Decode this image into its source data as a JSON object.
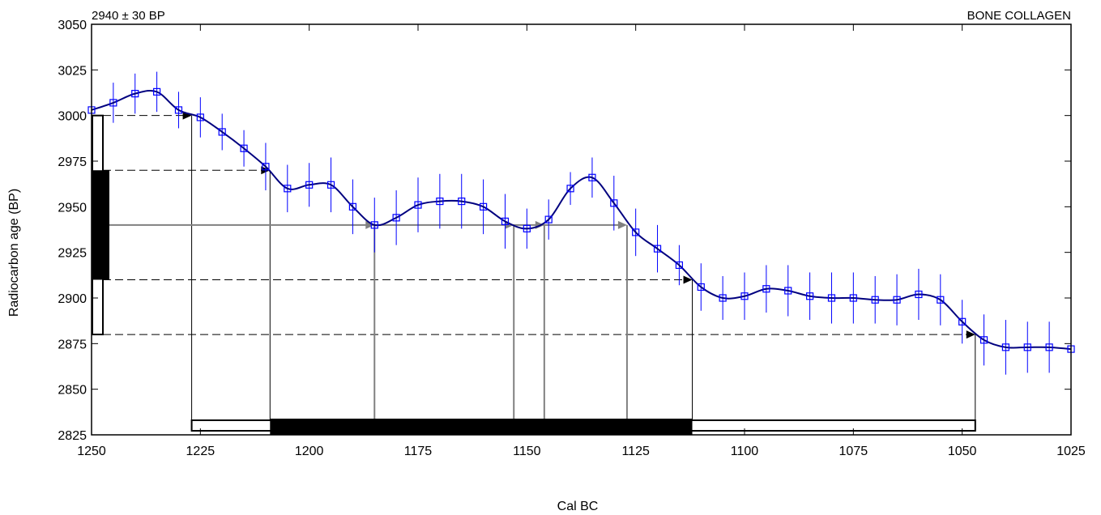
{
  "chart_data": {
    "type": "line",
    "title_left": "2940 ± 30 BP",
    "title_right": "BONE COLLAGEN",
    "xlabel": "Cal BC",
    "ylabel": "Radiocarbon age (BP)",
    "xlim": [
      1250,
      1025
    ],
    "ylim": [
      2825,
      3050
    ],
    "x_ticks": [
      1250,
      1225,
      1200,
      1175,
      1150,
      1125,
      1100,
      1075,
      1050,
      1025
    ],
    "y_ticks": [
      2825,
      2850,
      2875,
      2900,
      2925,
      2950,
      2975,
      3000,
      3025,
      3050
    ],
    "colors": {
      "curve": "#00007f",
      "points": "#0000ff",
      "intercept": "#808080",
      "axis": "#000000"
    },
    "calibration_curve": {
      "x": [
        1250,
        1245,
        1240,
        1235,
        1230,
        1225,
        1220,
        1215,
        1210,
        1205,
        1200,
        1195,
        1190,
        1185,
        1180,
        1175,
        1170,
        1165,
        1160,
        1155,
        1150,
        1145,
        1140,
        1135,
        1130,
        1125,
        1120,
        1115,
        1110,
        1105,
        1100,
        1095,
        1090,
        1085,
        1080,
        1075,
        1070,
        1065,
        1060,
        1055,
        1050,
        1045,
        1040,
        1035,
        1030,
        1025
      ],
      "y": [
        3003,
        3007,
        3012,
        3013,
        3003,
        2999,
        2991,
        2982,
        2972,
        2960,
        2962,
        2962,
        2950,
        2940,
        2944,
        2951,
        2953,
        2953,
        2950,
        2942,
        2938,
        2943,
        2960,
        2966,
        2952,
        2936,
        2927,
        2918,
        2906,
        2900,
        2901,
        2905,
        2904,
        2901,
        2900,
        2900,
        2899,
        2899,
        2902,
        2899,
        2887,
        2877,
        2873,
        2873,
        2873,
        2872
      ],
      "err": [
        10,
        11,
        11,
        11,
        10,
        11,
        10,
        10,
        13,
        13,
        12,
        15,
        15,
        15,
        15,
        15,
        15,
        15,
        15,
        15,
        11,
        11,
        9,
        11,
        15,
        13,
        13,
        11,
        13,
        12,
        13,
        13,
        14,
        13,
        14,
        14,
        13,
        14,
        14,
        14,
        12,
        14,
        15,
        14,
        14,
        10
      ]
    },
    "measured_age": {
      "mean": 2940,
      "sigma1": [
        2910,
        2970
      ],
      "sigma2": [
        2880,
        3000
      ]
    },
    "one_sigma_intercepts": [
      1185,
      1153,
      1146,
      1127
    ],
    "calibrated_ranges": {
      "two_sigma": [
        1227,
        1047
      ],
      "one_sigma": [
        1209,
        1112
      ]
    },
    "range_rows": [
      {
        "y": 3000,
        "x_end": 1227
      },
      {
        "y": 2970,
        "x_end": 1209
      },
      {
        "y": 2910,
        "x_end": 1112
      },
      {
        "y": 2880,
        "x_end": 1047
      }
    ]
  }
}
